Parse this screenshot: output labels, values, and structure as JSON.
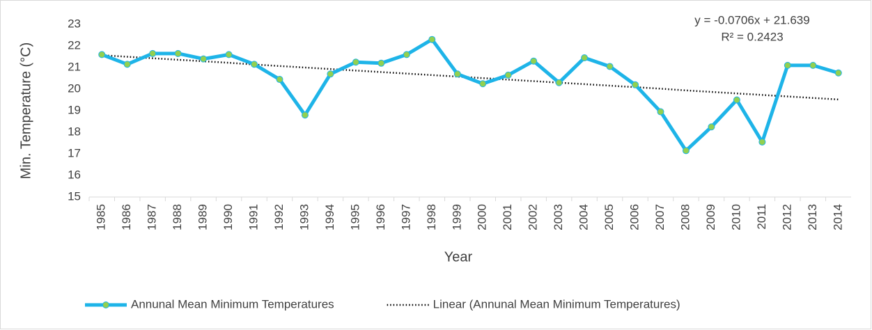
{
  "chart_data": {
    "type": "line",
    "x_label": "Year",
    "y_label": "Min. Temperature (°C)",
    "annotations": [
      "y = -0.0706x + 21.639",
      "R² = 0.2423"
    ],
    "categories": [
      "1985",
      "1986",
      "1987",
      "1988",
      "1989",
      "1990",
      "1991",
      "1992",
      "1993",
      "1994",
      "1995",
      "1996",
      "1997",
      "1998",
      "1999",
      "2000",
      "2001",
      "2002",
      "2003",
      "2004",
      "2005",
      "2006",
      "2007",
      "2008",
      "2009",
      "2010",
      "2011",
      "2012",
      "2013",
      "2014"
    ],
    "series": [
      {
        "name": "Annunal Mean Minimum Temperatures",
        "color": "#1eb4e8",
        "marker_color": "#92d050",
        "style": "solid",
        "values": [
          21.6,
          21.15,
          21.65,
          21.65,
          21.4,
          21.6,
          21.15,
          20.45,
          18.8,
          20.7,
          21.25,
          21.2,
          21.6,
          22.3,
          20.7,
          20.25,
          20.65,
          21.3,
          20.3,
          21.45,
          21.05,
          20.2,
          18.95,
          17.15,
          18.25,
          19.5,
          17.55,
          21.1,
          21.1,
          20.75
        ]
      },
      {
        "name": "Linear (Annunal Mean Minimum Temperatures)",
        "color": "#000000",
        "style": "dotted",
        "values": [
          21.57,
          21.5,
          21.43,
          21.36,
          21.29,
          21.22,
          21.14,
          21.07,
          21.0,
          20.93,
          20.86,
          20.79,
          20.72,
          20.65,
          20.58,
          20.51,
          20.44,
          20.37,
          20.3,
          20.23,
          20.16,
          20.09,
          20.02,
          19.94,
          19.87,
          19.8,
          19.73,
          19.66,
          19.59,
          19.52
        ]
      }
    ],
    "ylim": [
      15,
      23
    ],
    "yticks": [
      15,
      16,
      17,
      18,
      19,
      20,
      21,
      22,
      23
    ],
    "grid": false,
    "legend": "bottom"
  }
}
